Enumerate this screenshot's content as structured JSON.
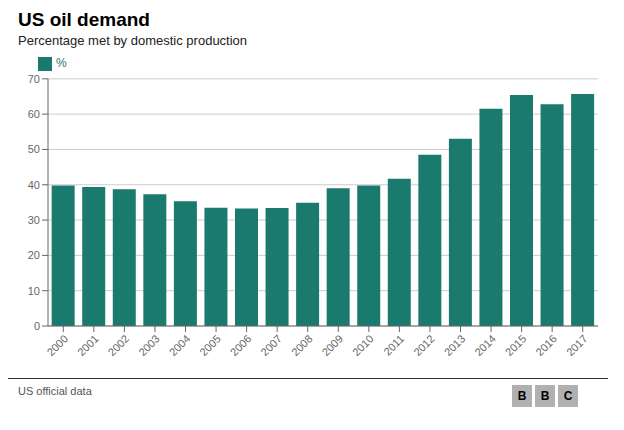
{
  "chart_data": {
    "type": "bar",
    "title": "US oil demand",
    "subtitle": "Percentage met by domestic production",
    "categories": [
      "2000",
      "2001",
      "2002",
      "2003",
      "2004",
      "2005",
      "2006",
      "2007",
      "2008",
      "2009",
      "2010",
      "2011",
      "2012",
      "2013",
      "2014",
      "2015",
      "2016",
      "2017"
    ],
    "series": [
      {
        "name": "%",
        "color": "#1a7a6e",
        "values": [
          39.8,
          39.4,
          38.7,
          37.3,
          35.3,
          33.5,
          33.3,
          33.4,
          34.9,
          39.0,
          39.8,
          41.7,
          48.5,
          53.0,
          61.5,
          65.4,
          62.8,
          65.7
        ]
      }
    ],
    "ylim": [
      0,
      70
    ],
    "yticks": [
      0,
      10,
      20,
      30,
      40,
      50,
      60,
      70
    ],
    "grid": true,
    "legend": "top",
    "annotations": [
      "US official data",
      "BBC"
    ]
  }
}
